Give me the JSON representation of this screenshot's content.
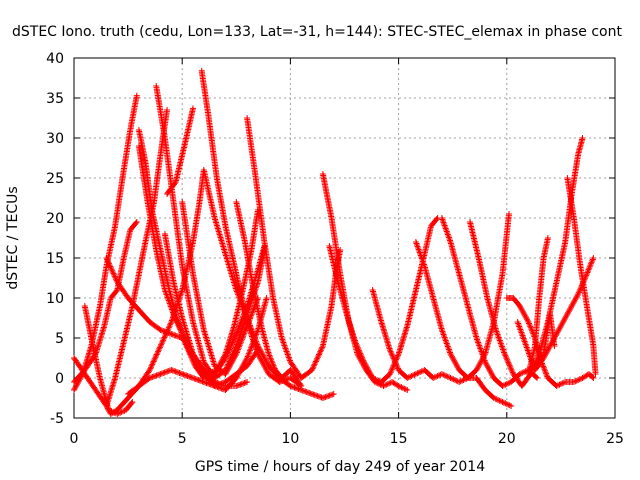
{
  "chart_data": {
    "type": "scatter",
    "title": "dSTEC Iono. truth (cedu, Lon=133, Lat=-31, h=144): STEC-STEC_elemax in phase cont",
    "xlabel": "GPS time / hours of day 249 of year 2014",
    "ylabel": "dSTEC  / TECUs",
    "xlim": [
      0,
      25
    ],
    "ylim": [
      -5,
      40
    ],
    "xticks": [
      0,
      5,
      10,
      15,
      20,
      25
    ],
    "yticks": [
      -5,
      0,
      5,
      10,
      15,
      20,
      25,
      30,
      35,
      40
    ],
    "grid": true,
    "marker": "plus",
    "color": "#ff0000",
    "series": [
      {
        "points": [
          [
            0.0,
            -1.5
          ],
          [
            0.4,
            0.5
          ],
          [
            0.8,
            4.0
          ],
          [
            1.2,
            9.0
          ],
          [
            1.5,
            14.0
          ],
          [
            1.9,
            19.0
          ],
          [
            2.3,
            26.0
          ],
          [
            2.6,
            31.0
          ],
          [
            2.9,
            35.3
          ]
        ]
      },
      {
        "points": [
          [
            0.0,
            2.5
          ],
          [
            0.5,
            0.5
          ],
          [
            1.0,
            -1.5
          ],
          [
            1.5,
            -3.5
          ],
          [
            1.7,
            -4.5
          ],
          [
            2.0,
            -4.0
          ],
          [
            2.5,
            -2.5
          ],
          [
            3.0,
            -1.0
          ],
          [
            3.5,
            1.0
          ],
          [
            4.0,
            4.0
          ],
          [
            4.5,
            7.0
          ],
          [
            5.0,
            11.0
          ],
          [
            5.5,
            17.0
          ],
          [
            5.8,
            22.0
          ],
          [
            6.0,
            26.0
          ],
          [
            6.5,
            20.0
          ],
          [
            7.0,
            15.5
          ],
          [
            7.5,
            11.0
          ],
          [
            8.0,
            7.5
          ],
          [
            8.5,
            4.0
          ],
          [
            9.0,
            1.5
          ],
          [
            9.5,
            0.0
          ],
          [
            10.0,
            -1.0
          ],
          [
            10.5,
            -1.5
          ],
          [
            11.0,
            -2.0
          ],
          [
            11.5,
            -2.5
          ],
          [
            12.0,
            -2.0
          ]
        ]
      },
      {
        "points": [
          [
            0.5,
            9.0
          ],
          [
            0.8,
            5.0
          ],
          [
            1.2,
            0.0
          ],
          [
            1.6,
            -4.0
          ],
          [
            2.0,
            -4.5
          ],
          [
            2.4,
            -4.0
          ],
          [
            2.7,
            -3.0
          ]
        ]
      },
      {
        "points": [
          [
            1.5,
            -3.5
          ],
          [
            1.9,
            0.0
          ],
          [
            2.3,
            4.5
          ],
          [
            2.7,
            9.0
          ],
          [
            3.0,
            13.0
          ],
          [
            3.3,
            17.0
          ],
          [
            3.7,
            22.0
          ],
          [
            4.0,
            28.0
          ],
          [
            4.3,
            33.5
          ]
        ]
      },
      {
        "points": [
          [
            0.0,
            -0.5
          ],
          [
            0.5,
            1.0
          ],
          [
            1.0,
            3.0
          ],
          [
            1.4,
            6.5
          ],
          [
            1.7,
            10.0
          ],
          [
            2.0,
            11.0
          ],
          [
            2.3,
            15.0
          ],
          [
            2.6,
            18.5
          ],
          [
            2.9,
            19.5
          ]
        ]
      },
      {
        "points": [
          [
            1.5,
            15.0
          ],
          [
            2.0,
            12.0
          ],
          [
            2.5,
            10.0
          ],
          [
            3.0,
            8.5
          ],
          [
            3.5,
            7.0
          ],
          [
            4.0,
            6.0
          ],
          [
            4.5,
            5.5
          ],
          [
            5.0,
            5.0
          ],
          [
            5.5,
            3.0
          ],
          [
            6.0,
            1.0
          ],
          [
            6.5,
            -0.5
          ],
          [
            7.0,
            -1.0
          ],
          [
            7.5,
            -1.0
          ],
          [
            8.0,
            -0.5
          ]
        ]
      },
      {
        "points": [
          [
            3.0,
            31.0
          ],
          [
            3.3,
            27.0
          ],
          [
            3.6,
            21.0
          ],
          [
            4.0,
            16.0
          ],
          [
            4.4,
            11.0
          ],
          [
            4.8,
            7.0
          ],
          [
            5.2,
            4.0
          ],
          [
            5.6,
            1.5
          ],
          [
            6.0,
            0.0
          ],
          [
            6.5,
            0.5
          ],
          [
            7.0,
            2.5
          ],
          [
            7.5,
            5.5
          ],
          [
            8.0,
            9.0
          ],
          [
            8.5,
            13.5
          ],
          [
            8.8,
            16.5
          ]
        ]
      },
      {
        "points": [
          [
            3.0,
            29.0
          ],
          [
            3.4,
            22.0
          ],
          [
            3.8,
            16.0
          ],
          [
            4.2,
            11.0
          ],
          [
            4.6,
            8.0
          ],
          [
            5.0,
            5.5
          ],
          [
            5.4,
            3.0
          ],
          [
            5.8,
            1.5
          ],
          [
            6.2,
            0.5
          ],
          [
            6.6,
            1.0
          ],
          [
            7.0,
            3.0
          ],
          [
            7.4,
            6.5
          ],
          [
            7.8,
            11.0
          ],
          [
            8.2,
            16.0
          ],
          [
            8.5,
            21.0
          ]
        ]
      },
      {
        "points": [
          [
            3.8,
            36.5
          ],
          [
            4.2,
            30.0
          ],
          [
            4.6,
            22.0
          ],
          [
            5.0,
            14.0
          ],
          [
            5.5,
            7.0
          ],
          [
            6.0,
            2.0
          ],
          [
            6.5,
            0.0
          ],
          [
            7.0,
            1.0
          ],
          [
            7.5,
            4.0
          ],
          [
            8.0,
            8.0
          ],
          [
            8.5,
            12.0
          ],
          [
            8.8,
            16.0
          ]
        ]
      },
      {
        "points": [
          [
            4.2,
            18.0
          ],
          [
            4.6,
            12.0
          ],
          [
            5.0,
            7.5
          ],
          [
            5.5,
            3.0
          ],
          [
            6.0,
            0.5
          ],
          [
            6.5,
            -1.0
          ],
          [
            7.0,
            -1.5
          ],
          [
            7.5,
            0.0
          ],
          [
            8.0,
            2.5
          ],
          [
            8.5,
            6.0
          ],
          [
            8.9,
            10.0
          ]
        ]
      },
      {
        "points": [
          [
            2.5,
            -2.0
          ],
          [
            3.0,
            -1.0
          ],
          [
            3.5,
            0.0
          ],
          [
            4.0,
            0.5
          ],
          [
            4.5,
            1.0
          ],
          [
            5.0,
            0.5
          ],
          [
            5.5,
            0.0
          ],
          [
            6.0,
            -0.5
          ],
          [
            6.5,
            -1.0
          ],
          [
            7.0,
            -0.5
          ],
          [
            7.5,
            0.5
          ],
          [
            8.0,
            1.5
          ],
          [
            8.5,
            3.5
          ]
        ]
      },
      {
        "points": [
          [
            5.0,
            22.0
          ],
          [
            5.5,
            13.0
          ],
          [
            6.0,
            6.0
          ],
          [
            6.5,
            1.5
          ],
          [
            7.0,
            0.5
          ],
          [
            7.5,
            3.0
          ],
          [
            8.0,
            6.5
          ],
          [
            8.5,
            10.0
          ]
        ]
      },
      {
        "points": [
          [
            4.3,
            23.0
          ],
          [
            4.7,
            24.5
          ],
          [
            5.1,
            29.0
          ],
          [
            5.5,
            33.7
          ]
        ]
      },
      {
        "points": [
          [
            5.9,
            38.4
          ],
          [
            6.2,
            33.0
          ],
          [
            6.6,
            25.0
          ],
          [
            7.0,
            19.0
          ],
          [
            7.5,
            13.0
          ],
          [
            8.0,
            7.0
          ],
          [
            8.5,
            3.0
          ],
          [
            9.0,
            0.5
          ],
          [
            9.5,
            -0.5
          ],
          [
            10.0,
            0.0
          ],
          [
            10.5,
            -1.0
          ]
        ]
      },
      {
        "points": [
          [
            7.5,
            22.0
          ],
          [
            7.9,
            17.0
          ],
          [
            8.3,
            11.0
          ],
          [
            8.7,
            6.0
          ],
          [
            9.0,
            3.0
          ],
          [
            9.3,
            1.0
          ],
          [
            9.6,
            0.0
          ],
          [
            10.0,
            1.0
          ],
          [
            10.5,
            -1.0
          ]
        ]
      },
      {
        "points": [
          [
            8.0,
            32.5
          ],
          [
            8.4,
            25.0
          ],
          [
            8.8,
            17.0
          ],
          [
            9.2,
            10.0
          ],
          [
            9.6,
            5.0
          ],
          [
            10.0,
            2.0
          ],
          [
            10.5,
            0.0
          ],
          [
            11.0,
            1.0
          ],
          [
            11.5,
            4.0
          ],
          [
            11.9,
            9.0
          ],
          [
            12.1,
            13.0
          ],
          [
            12.3,
            16.0
          ]
        ]
      },
      {
        "points": [
          [
            11.5,
            25.5
          ],
          [
            11.9,
            20.0
          ],
          [
            12.3,
            13.0
          ],
          [
            12.7,
            7.0
          ],
          [
            13.1,
            3.0
          ],
          [
            13.5,
            1.0
          ],
          [
            13.9,
            -0.5
          ],
          [
            14.3,
            -1.0
          ],
          [
            14.7,
            -0.5
          ],
          [
            15.0,
            -1.0
          ],
          [
            15.4,
            -1.5
          ]
        ]
      },
      {
        "points": [
          [
            13.8,
            11.0
          ],
          [
            14.2,
            7.0
          ],
          [
            14.6,
            3.5
          ],
          [
            15.0,
            1.0
          ],
          [
            15.4,
            0.0
          ],
          [
            15.8,
            0.5
          ],
          [
            16.2,
            1.0
          ],
          [
            16.6,
            0.0
          ],
          [
            17.0,
            0.5
          ],
          [
            17.4,
            0.0
          ],
          [
            17.8,
            -0.5
          ],
          [
            18.2,
            0.0
          ],
          [
            18.6,
            0.0
          ],
          [
            19.0,
            -1.5
          ],
          [
            19.4,
            -2.5
          ],
          [
            19.8,
            -3.0
          ],
          [
            20.2,
            -3.5
          ]
        ]
      },
      {
        "points": [
          [
            11.8,
            16.5
          ],
          [
            12.2,
            12.0
          ],
          [
            12.6,
            8.0
          ],
          [
            13.0,
            4.5
          ],
          [
            13.4,
            2.0
          ],
          [
            13.8,
            0.0
          ],
          [
            14.2,
            -0.5
          ],
          [
            14.6,
            0.5
          ],
          [
            15.0,
            3.0
          ],
          [
            15.4,
            6.5
          ],
          [
            15.8,
            11.0
          ],
          [
            16.2,
            15.5
          ],
          [
            16.5,
            19.0
          ],
          [
            16.8,
            20.0
          ]
        ]
      },
      {
        "points": [
          [
            15.8,
            17.0
          ],
          [
            16.2,
            14.0
          ],
          [
            16.6,
            10.0
          ],
          [
            17.0,
            6.0
          ],
          [
            17.4,
            3.0
          ],
          [
            17.8,
            1.0
          ],
          [
            18.2,
            0.0
          ],
          [
            18.6,
            1.0
          ],
          [
            19.0,
            3.0
          ],
          [
            19.4,
            7.0
          ],
          [
            19.8,
            13.0
          ],
          [
            20.1,
            20.5
          ]
        ]
      },
      {
        "points": [
          [
            17.0,
            20.0
          ],
          [
            17.4,
            17.0
          ],
          [
            17.8,
            13.0
          ],
          [
            18.2,
            9.0
          ],
          [
            18.6,
            5.0
          ],
          [
            19.0,
            2.0
          ],
          [
            19.4,
            0.0
          ],
          [
            19.8,
            -1.0
          ],
          [
            20.2,
            -0.5
          ],
          [
            20.6,
            0.5
          ],
          [
            21.0,
            1.0
          ],
          [
            21.4,
            0.0
          ]
        ]
      },
      {
        "points": [
          [
            18.3,
            19.5
          ],
          [
            18.7,
            15.0
          ],
          [
            19.1,
            10.0
          ],
          [
            19.5,
            6.0
          ],
          [
            19.9,
            3.0
          ],
          [
            20.3,
            0.5
          ],
          [
            20.7,
            -1.0
          ],
          [
            21.1,
            0.5
          ],
          [
            21.5,
            3.0
          ],
          [
            21.9,
            7.0
          ],
          [
            22.3,
            12.0
          ],
          [
            22.7,
            17.0
          ],
          [
            23.0,
            23.0
          ],
          [
            23.3,
            28.0
          ],
          [
            23.5,
            30.0
          ]
        ]
      },
      {
        "points": [
          [
            20.0,
            10.0
          ],
          [
            20.3,
            10.0
          ],
          [
            20.6,
            9.0
          ],
          [
            21.0,
            7.0
          ],
          [
            21.3,
            5.0
          ],
          [
            21.6,
            2.0
          ],
          [
            21.9,
            0.0
          ],
          [
            22.3,
            -1.0
          ],
          [
            22.7,
            -0.5
          ],
          [
            23.1,
            -0.5
          ],
          [
            23.5,
            0.0
          ],
          [
            23.8,
            0.5
          ],
          [
            24.0,
            0.0
          ]
        ]
      },
      {
        "points": [
          [
            20.5,
            7.0
          ],
          [
            20.9,
            4.0
          ],
          [
            21.3,
            1.0
          ],
          [
            21.7,
            3.0
          ],
          [
            22.0,
            8.0
          ],
          [
            22.2,
            4.0
          ]
        ]
      },
      {
        "points": [
          [
            21.0,
            0.5
          ],
          [
            21.3,
            4.0
          ],
          [
            21.5,
            10.0
          ],
          [
            21.7,
            15.0
          ],
          [
            21.9,
            17.5
          ]
        ]
      },
      {
        "points": [
          [
            22.8,
            25.0
          ],
          [
            23.1,
            20.0
          ],
          [
            23.4,
            14.0
          ],
          [
            23.7,
            9.0
          ],
          [
            24.0,
            4.0
          ],
          [
            24.1,
            0.5
          ]
        ]
      },
      {
        "points": [
          [
            21.3,
            1.0
          ],
          [
            21.7,
            2.5
          ],
          [
            22.1,
            4.5
          ],
          [
            22.5,
            6.5
          ],
          [
            22.9,
            8.5
          ],
          [
            23.3,
            10.5
          ],
          [
            23.7,
            13.0
          ],
          [
            24.0,
            15.0
          ]
        ]
      }
    ]
  }
}
